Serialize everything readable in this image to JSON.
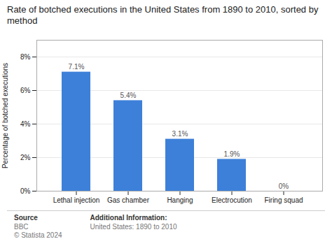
{
  "chart_data": {
    "type": "bar",
    "title": "Rate of botched executions in the United States from 1890 to 2010, sorted by method",
    "categories": [
      "Lethal injection",
      "Gas chamber",
      "Hanging",
      "Electrocution",
      "Firing squad"
    ],
    "values": [
      7.1,
      5.4,
      3.1,
      1.9,
      0.0
    ],
    "value_labels": [
      "7.1%",
      "5.4%",
      "3.1%",
      "1.9%",
      "0%"
    ],
    "color": "#3d80d9",
    "ylabel": "Percentage of botched executions",
    "ylim": [
      0,
      9
    ],
    "yticks": [
      {
        "value": 0,
        "label": "0%"
      },
      {
        "value": 2,
        "label": "2%"
      },
      {
        "value": 4,
        "label": "4%"
      },
      {
        "value": 6,
        "label": "6%"
      },
      {
        "value": 8,
        "label": "8%"
      }
    ],
    "grid": true,
    "data_labels": true,
    "annotations": [
      "Source",
      "BBC\n© Statista 2024",
      "Additional Information:",
      "United States: 1890 to 2010"
    ]
  }
}
